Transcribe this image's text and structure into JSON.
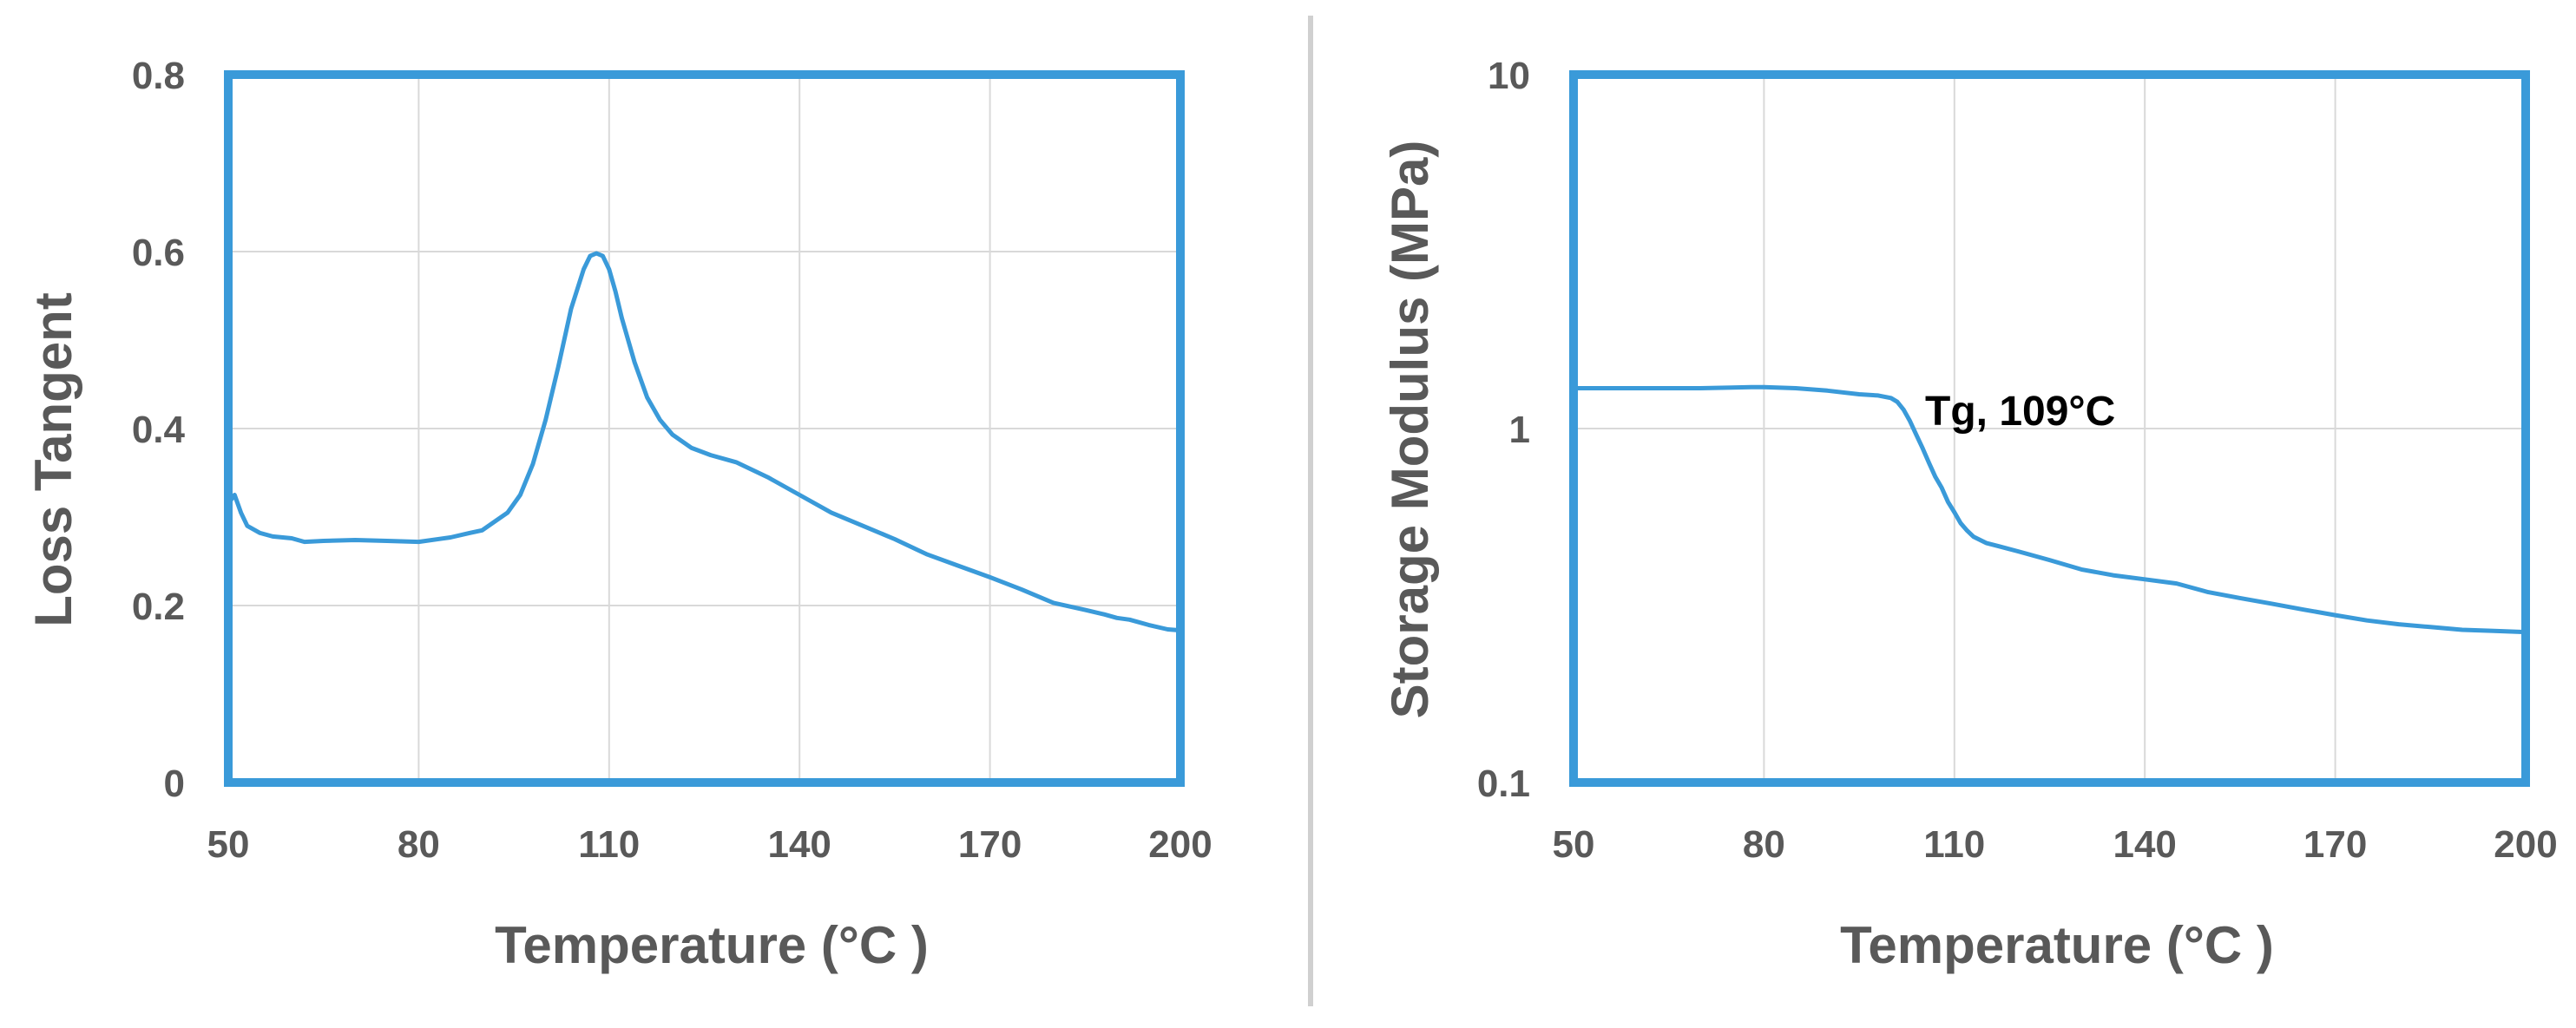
{
  "colors": {
    "series": "#3a9ad9",
    "frame": "#3a9ad9",
    "grid": "#d9d9d9",
    "text": "#595959",
    "divider": "#d0d0d0"
  },
  "chart_data": [
    {
      "type": "line",
      "title": "",
      "xlabel": "Temperature (°C )",
      "ylabel": "Loss Tangent",
      "xlim": [
        50,
        200
      ],
      "ylim": [
        0,
        0.8
      ],
      "xscale": "linear",
      "yscale": "linear",
      "grid": true,
      "xticks": [
        50,
        80,
        110,
        140,
        170,
        200
      ],
      "yticks": [
        0,
        0.2,
        0.4,
        0.6,
        0.8
      ],
      "xtick_labels": [
        "50",
        "80",
        "110",
        "140",
        "170",
        "200"
      ],
      "ytick_labels": [
        "0",
        "0.2",
        "0.4",
        "0.6",
        "0.8"
      ],
      "series": [
        {
          "x": [
            50,
            51,
            52,
            53,
            55,
            57,
            60,
            62,
            65,
            70,
            75,
            80,
            85,
            88,
            90,
            92,
            94,
            96,
            98,
            100,
            102,
            104,
            106,
            107,
            108,
            109,
            110,
            111,
            112,
            114,
            116,
            118,
            120,
            123,
            126,
            130,
            135,
            140,
            145,
            150,
            155,
            160,
            165,
            170,
            175,
            180,
            185,
            188,
            190,
            192,
            195,
            198,
            200
          ],
          "y": [
            0.315,
            0.325,
            0.305,
            0.29,
            0.282,
            0.278,
            0.276,
            0.272,
            0.273,
            0.274,
            0.273,
            0.272,
            0.277,
            0.282,
            0.285,
            0.295,
            0.305,
            0.325,
            0.36,
            0.41,
            0.47,
            0.535,
            0.58,
            0.595,
            0.598,
            0.595,
            0.58,
            0.555,
            0.525,
            0.475,
            0.435,
            0.41,
            0.393,
            0.378,
            0.37,
            0.362,
            0.345,
            0.325,
            0.305,
            0.29,
            0.275,
            0.258,
            0.245,
            0.232,
            0.218,
            0.203,
            0.195,
            0.19,
            0.186,
            0.184,
            0.178,
            0.173,
            0.172
          ]
        }
      ]
    },
    {
      "type": "line",
      "title": "",
      "xlabel": "Temperature (°C )",
      "ylabel": "Storage Modulus (MPa)",
      "xlim": [
        50,
        200
      ],
      "ylim": [
        0.1,
        10
      ],
      "xscale": "linear",
      "yscale": "log",
      "grid": true,
      "xticks": [
        50,
        80,
        110,
        140,
        170,
        200
      ],
      "yticks": [
        0.1,
        1,
        10
      ],
      "xtick_labels": [
        "50",
        "80",
        "110",
        "140",
        "170",
        "200"
      ],
      "ytick_labels": [
        "0.1",
        "1",
        "10"
      ],
      "annotations": [
        {
          "text": "Tg, 109°C",
          "x": 104,
          "y": 1.0
        }
      ],
      "series": [
        {
          "x": [
            50,
            55,
            60,
            65,
            70,
            75,
            78,
            80,
            85,
            90,
            95,
            98,
            100,
            101,
            102,
            103,
            104,
            105,
            106,
            107,
            108,
            109,
            110,
            111,
            112,
            113,
            115,
            117,
            120,
            125,
            130,
            135,
            140,
            145,
            150,
            155,
            160,
            165,
            170,
            175,
            180,
            185,
            190,
            195,
            200
          ],
          "y": [
            1.3,
            1.3,
            1.3,
            1.3,
            1.3,
            1.305,
            1.31,
            1.31,
            1.3,
            1.28,
            1.25,
            1.24,
            1.22,
            1.19,
            1.13,
            1.05,
            0.96,
            0.88,
            0.8,
            0.73,
            0.68,
            0.62,
            0.58,
            0.54,
            0.515,
            0.495,
            0.475,
            0.465,
            0.45,
            0.425,
            0.4,
            0.385,
            0.375,
            0.365,
            0.345,
            0.332,
            0.32,
            0.308,
            0.297,
            0.287,
            0.28,
            0.275,
            0.27,
            0.268,
            0.266
          ]
        }
      ]
    }
  ]
}
